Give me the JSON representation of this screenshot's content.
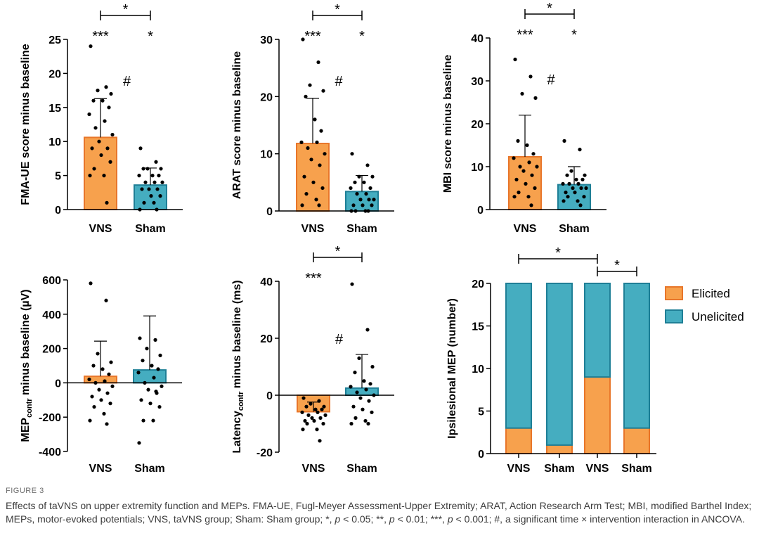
{
  "colors": {
    "vns": "#F7A14D",
    "vns_edge": "#E8762A",
    "sham": "#45ADC0",
    "sham_edge": "#1F7F96"
  },
  "figure": {
    "label": "FIGURE 3",
    "caption_segments": [
      "Effects of taVNS on upper extremity function and MEPs. FMA-UE, Fugl-Meyer Assessment-Upper Extremity; ARAT, Action Research Arm Test; MBI, modified Barthel Index; MEPs, motor-evoked potentials; VNS, taVNS group; Sham: Sham group; *, ",
      "p",
      " < 0.05; **, ",
      "p",
      " < 0.01; ***, ",
      "p",
      " < 0.001; #, a significant time × intervention interaction in ANCOVA."
    ]
  },
  "chart_data": [
    {
      "id": "fma",
      "type": "bar",
      "ylabel": "FMA-UE score minus baseline",
      "categories": [
        "VNS",
        "Sham"
      ],
      "means": [
        10.6,
        3.6
      ],
      "err_upper": [
        16.3,
        6.1
      ],
      "ylim": [
        0,
        25
      ],
      "yticks": [
        0,
        5,
        10,
        15,
        20,
        25
      ],
      "ytick_labels": [
        "0",
        "5",
        "10",
        "15",
        "20",
        "25"
      ],
      "points": [
        [
          24,
          18,
          17.5,
          17,
          16,
          16,
          15,
          14,
          13,
          12,
          11,
          10,
          9,
          9,
          8,
          7,
          6,
          5,
          5,
          1
        ],
        [
          9,
          7,
          6,
          6,
          6,
          5,
          5,
          5,
          4,
          4,
          4,
          3,
          3,
          3,
          2,
          2,
          1,
          1,
          0,
          0
        ]
      ],
      "point_labels": [
        "***",
        "*"
      ],
      "bracket": "*",
      "hash": "#"
    },
    {
      "id": "arat",
      "type": "bar",
      "ylabel": "ARAT score minus baseline",
      "categories": [
        "VNS",
        "Sham"
      ],
      "means": [
        11.8,
        3.4
      ],
      "err_upper": [
        19.7,
        6.2
      ],
      "ylim": [
        0,
        30
      ],
      "yticks": [
        0,
        10,
        20,
        30
      ],
      "ytick_labels": [
        "0",
        "10",
        "20",
        "30"
      ],
      "points": [
        [
          30,
          26,
          22,
          21,
          20,
          16,
          14,
          12,
          12,
          11,
          10,
          9,
          8,
          6,
          5,
          4,
          3,
          2,
          1,
          1
        ],
        [
          10,
          8,
          6,
          6,
          5,
          5,
          4,
          4,
          3,
          3,
          2,
          2,
          2,
          1,
          1,
          1,
          0,
          0,
          0,
          0
        ]
      ],
      "point_labels": [
        "***",
        "*"
      ],
      "bracket": "*",
      "hash": "#"
    },
    {
      "id": "mbi",
      "type": "bar",
      "ylabel": "MBI score minus baseline",
      "categories": [
        "VNS",
        "Sham"
      ],
      "means": [
        12.3,
        5.8
      ],
      "err_upper": [
        22.0,
        10.0
      ],
      "ylim": [
        0,
        40
      ],
      "yticks": [
        0,
        10,
        20,
        30,
        40
      ],
      "ytick_labels": [
        "0",
        "10",
        "20",
        "30",
        "40"
      ],
      "points": [
        [
          35,
          31,
          27,
          26,
          16,
          15,
          13,
          12,
          11,
          10,
          10,
          9,
          8,
          7,
          6,
          5,
          4,
          3,
          3,
          1
        ],
        [
          16,
          14,
          9,
          8,
          8,
          7,
          7,
          6,
          6,
          6,
          5,
          5,
          5,
          4,
          4,
          3,
          3,
          2,
          2,
          1
        ]
      ],
      "point_labels": [
        "***",
        "*"
      ],
      "bracket": "*",
      "hash": "#"
    },
    {
      "id": "mep",
      "type": "bar",
      "ylabel_main": "MEP",
      "ylabel_sub": "contr",
      "ylabel_rest": " minus baseline (µV)",
      "categories": [
        "VNS",
        "Sham"
      ],
      "means": [
        38,
        75
      ],
      "err_upper": [
        243,
        390
      ],
      "ylim": [
        -400,
        600
      ],
      "yticks": [
        -400,
        -200,
        0,
        200,
        400,
        600
      ],
      "ytick_labels": [
        "-400",
        "-200",
        "0",
        "200",
        "400",
        "600"
      ],
      "points": [
        [
          580,
          480,
          170,
          120,
          100,
          80,
          50,
          20,
          10,
          0,
          -20,
          -40,
          -60,
          -80,
          -100,
          -120,
          -140,
          -180,
          -220,
          -240
        ],
        [
          260,
          250,
          200,
          160,
          130,
          100,
          80,
          60,
          30,
          0,
          -20,
          -40,
          -60,
          -100,
          -120,
          -140,
          -220,
          -220,
          -350,
          -50
        ]
      ],
      "point_labels": [
        "",
        ""
      ],
      "bracket": "",
      "hash": ""
    },
    {
      "id": "latency",
      "type": "bar",
      "ylabel_main": "Latency",
      "ylabel_sub": "contr",
      "ylabel_rest": " minus baseline (ms)",
      "categories": [
        "VNS",
        "Sham"
      ],
      "means": [
        -5.8,
        2.5
      ],
      "err_upper": [
        -2.4,
        14.3
      ],
      "ylim": [
        -20,
        40
      ],
      "yticks": [
        -20,
        0,
        20,
        40
      ],
      "ytick_labels": [
        "-20",
        "0",
        "20",
        "40"
      ],
      "points": [
        [
          -1,
          -2,
          -3,
          -4,
          -4,
          -5,
          -5,
          -6,
          -6,
          -7,
          -7,
          -8,
          -8,
          -9,
          -9,
          -10,
          -10,
          -12,
          -12,
          -16
        ],
        [
          39,
          23,
          13,
          10,
          8,
          5,
          4,
          3,
          2,
          1,
          0,
          -1,
          -2,
          -4,
          -5,
          -6,
          -8,
          -9,
          -10,
          -10
        ]
      ],
      "point_labels": [
        "***",
        ""
      ],
      "bracket": "*",
      "hash": "#"
    },
    {
      "id": "ipsi",
      "type": "stacked-bar",
      "ylabel": "Ipsilesional MEP (number)",
      "categories": [
        "VNS",
        "Sham",
        "VNS",
        "Sham"
      ],
      "series": [
        {
          "name": "Elicited",
          "values": [
            3,
            1,
            9,
            3
          ]
        },
        {
          "name": "Unelicited",
          "values": [
            17,
            19,
            11,
            17
          ]
        }
      ],
      "ylim": [
        0,
        20
      ],
      "yticks": [
        0,
        5,
        10,
        15,
        20
      ],
      "ytick_labels": [
        "0",
        "5",
        "10",
        "15",
        "20"
      ],
      "legend": [
        "Elicited",
        "Unelicited"
      ],
      "brackets": [
        {
          "from": 0,
          "to": 2,
          "label": "*"
        },
        {
          "from": 2,
          "to": 3,
          "label": "*"
        }
      ]
    }
  ]
}
